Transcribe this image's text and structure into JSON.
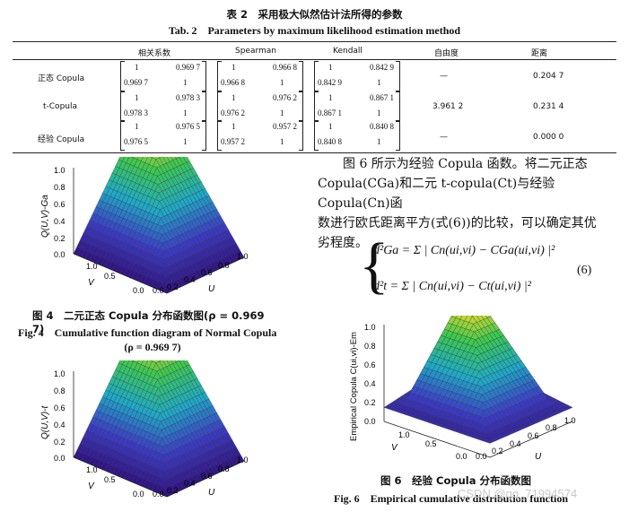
{
  "table": {
    "title_cn": "表 2　采用极大似然估计法所得的参数",
    "title_en": "Tab. 2　Parameters by maximum likelihood estimation method",
    "headers": [
      "相关系数",
      "Spearman",
      "Kendall",
      "自由度",
      "距离"
    ],
    "rows": [
      {
        "label": "正态 Copula",
        "pearson": [
          "1",
          "0.969 7",
          "0.969 7",
          "1"
        ],
        "spearman": [
          "1",
          "0.966 8",
          "0.966 8",
          "1"
        ],
        "kendall": [
          "1",
          "0.842 9",
          "0.842 9",
          "1"
        ],
        "dof": "—",
        "distance": "0.204 7"
      },
      {
        "label": "t-Copula",
        "pearson": [
          "1",
          "0.978 3",
          "0.978 3",
          "1"
        ],
        "spearman": [
          "1",
          "0.976 2",
          "0.976 2",
          "1"
        ],
        "kendall": [
          "1",
          "0.867 1",
          "0.867 1",
          "1"
        ],
        "dof": "3.961 2",
        "distance": "0.231 4"
      },
      {
        "label": "经验 Copula",
        "pearson": [
          "1",
          "0.976 5",
          "0.976 5",
          "1"
        ],
        "spearman": [
          "1",
          "0.957 2",
          "0.957 2",
          "1"
        ],
        "kendall": [
          "1",
          "0.840 8",
          "0.840 8",
          "1"
        ],
        "dof": "—",
        "distance": "0.000 0"
      }
    ]
  },
  "figure4": {
    "zlabel": "Q(U,V)-Ga",
    "ticks_z": [
      "1.0",
      "0.8",
      "0.6",
      "0.4",
      "0.2",
      "0.0"
    ],
    "ticks_v": [
      "1.0",
      "0.5",
      "0.0"
    ],
    "ticks_u": [
      "0.0",
      "0.2",
      "0.4",
      "0.6",
      "0.8",
      "1.0"
    ],
    "axis_v": "V",
    "axis_u": "U",
    "caption_cn": "图 4　二元正态 Copula 分布函数图(ρ = 0.969 7)",
    "caption_en_1": "Fig. 4　Cumulative function diagram of Normal Copula",
    "caption_en_2": "(ρ = 0.969 7)"
  },
  "figure5": {
    "zlabel": "Q(U,V)-t",
    "ticks_z": [
      "1.0",
      "0.8",
      "0.6",
      "0.4",
      "0.2",
      "0.0"
    ],
    "ticks_v": [
      "1.0",
      "0.5",
      "0.0"
    ],
    "ticks_u": [
      "0.0",
      "0.2",
      "0.4",
      "0.6",
      "0.8",
      "1.0"
    ],
    "axis_v": "V",
    "axis_u": "U"
  },
  "figure6": {
    "zlabel": "Empirical Copula C(ui,vi)-Em",
    "ticks_z": [
      "1.0",
      "0.8",
      "0.6",
      "0.4",
      "0.2",
      "0.0"
    ],
    "ticks_v": [
      "1.0",
      "0.5",
      "0.0"
    ],
    "ticks_u": [
      "0.0",
      "0.2",
      "0.4",
      "0.6",
      "0.8",
      "1.0"
    ],
    "axis_v": "V",
    "axis_u": "U",
    "caption_cn": "图 6　经验 Copula 分布函数图",
    "caption_en": "Fig. 6　Empirical cumulative distribution function"
  },
  "body_text": {
    "line1": "图 6 所示为经验 Copula 函数。将二元正态",
    "line2": "Copula(CGa)和二元 t-copula(Ct)与经验 Copula(Cn)函",
    "line3": "数进行欧氏距离平方(式(6))的比较，可以确定其优",
    "line4": "劣程度。"
  },
  "equation": {
    "line1": "d²Ga = Σ | Cn(ui,vi) − CGa(ui,vi) |²",
    "line2": "d²t = Σ | Cn(ui,vi) − Ct(ui,vi) |²",
    "number": "(6)",
    "sum_upper": "n",
    "sum_lower": "i=1"
  },
  "watermark": "CSDN @qq_71994574"
}
